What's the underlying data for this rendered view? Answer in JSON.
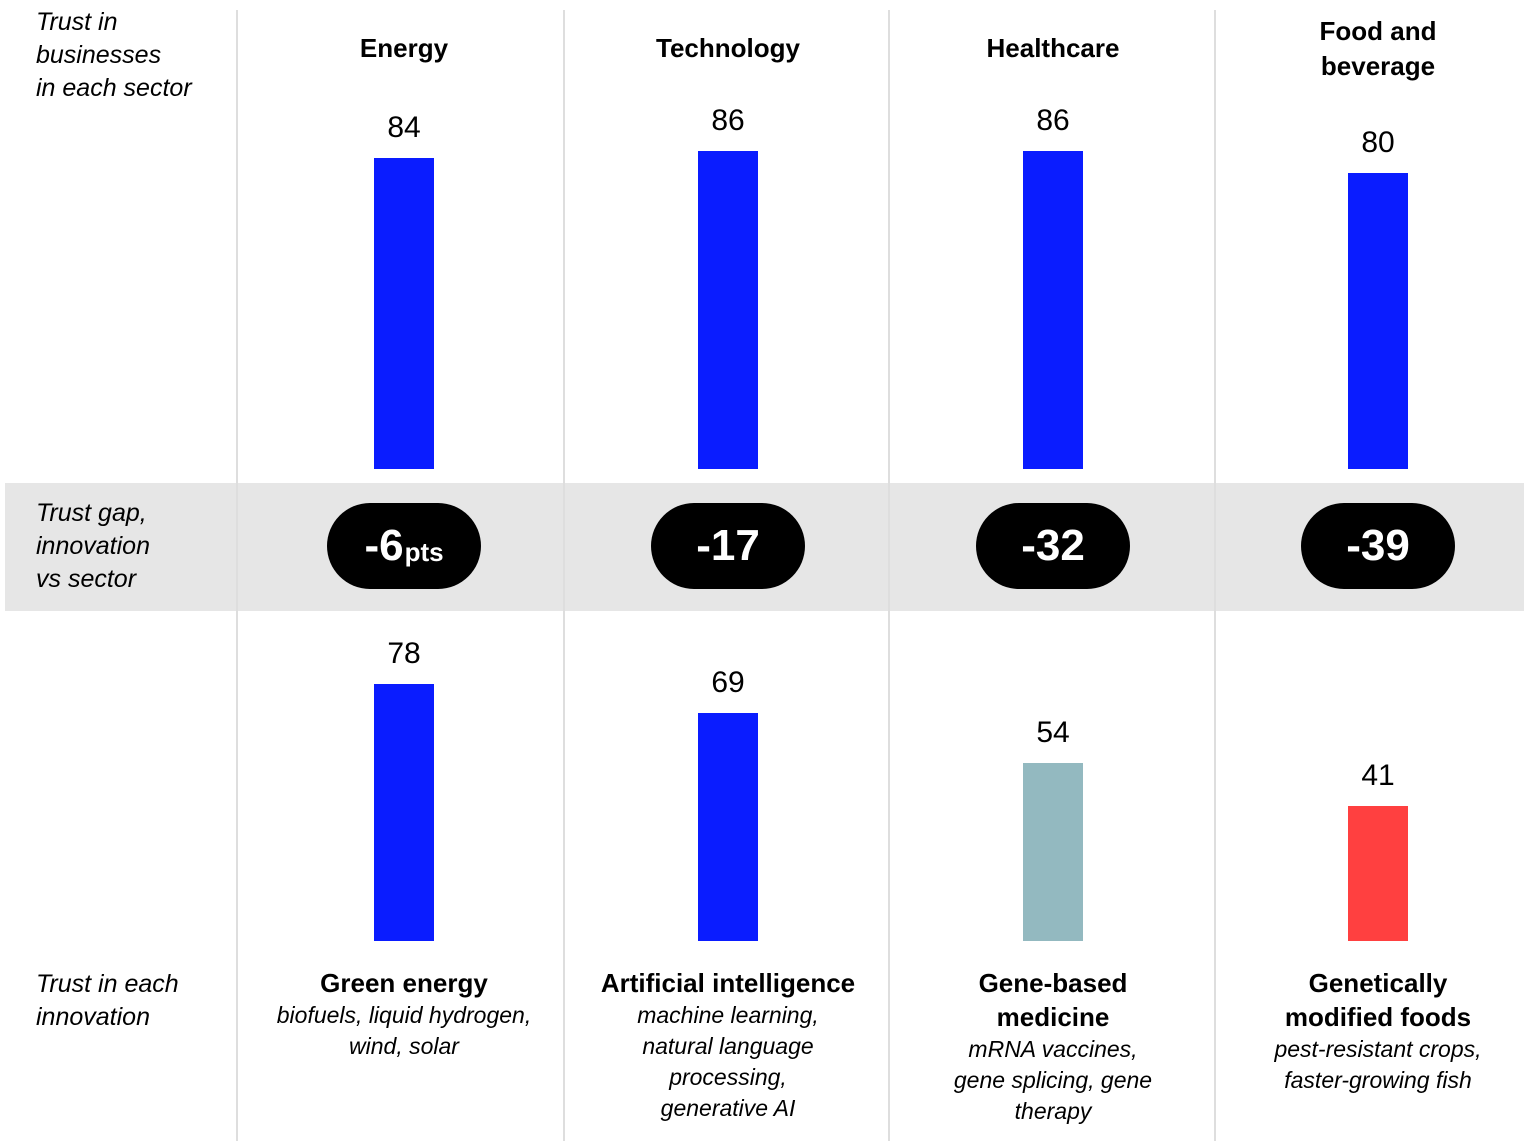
{
  "row_labels": {
    "sector": "Trust in\nbusinesses\nin each sector",
    "gap": "Trust gap,\ninnovation\nvs sector",
    "innovation": "Trust in each\ninnovation"
  },
  "gap_unit": "pts",
  "colors": {
    "blue": "#0a1cff",
    "teal": "#93b9c0",
    "red": "#ff4040",
    "band": "#e6e6e6",
    "pill": "#000000"
  },
  "chart_data": {
    "type": "bar",
    "categories": [
      "Energy",
      "Technology",
      "Healthcare",
      "Food and\nbeverage"
    ],
    "series": [
      {
        "name": "Trust in businesses in each sector",
        "values": [
          84,
          86,
          86,
          80
        ]
      },
      {
        "name": "Trust in each innovation",
        "values": [
          78,
          69,
          54,
          41
        ]
      }
    ],
    "trust_gap": [
      "-6",
      "-17",
      "-32",
      "-39"
    ],
    "innovations": [
      {
        "name": "Green energy",
        "description": "biofuels, liquid hydrogen,\nwind, solar",
        "color": "#0a1cff"
      },
      {
        "name": "Artificial intelligence",
        "description": "machine learning,\nnatural language\nprocessing,\ngenerative AI",
        "color": "#0a1cff"
      },
      {
        "name": "Gene-based\nmedicine",
        "description": "mRNA vaccines,\ngene splicing, gene\ntherapy",
        "color": "#93b9c0"
      },
      {
        "name": "Genetically\nmodified foods",
        "description": "pest-resistant crops,\nfaster-growing fish",
        "color": "#ff4040"
      }
    ],
    "sector_bar_color": "#0a1cff",
    "ylim": [
      0,
      100
    ],
    "grid": false
  }
}
